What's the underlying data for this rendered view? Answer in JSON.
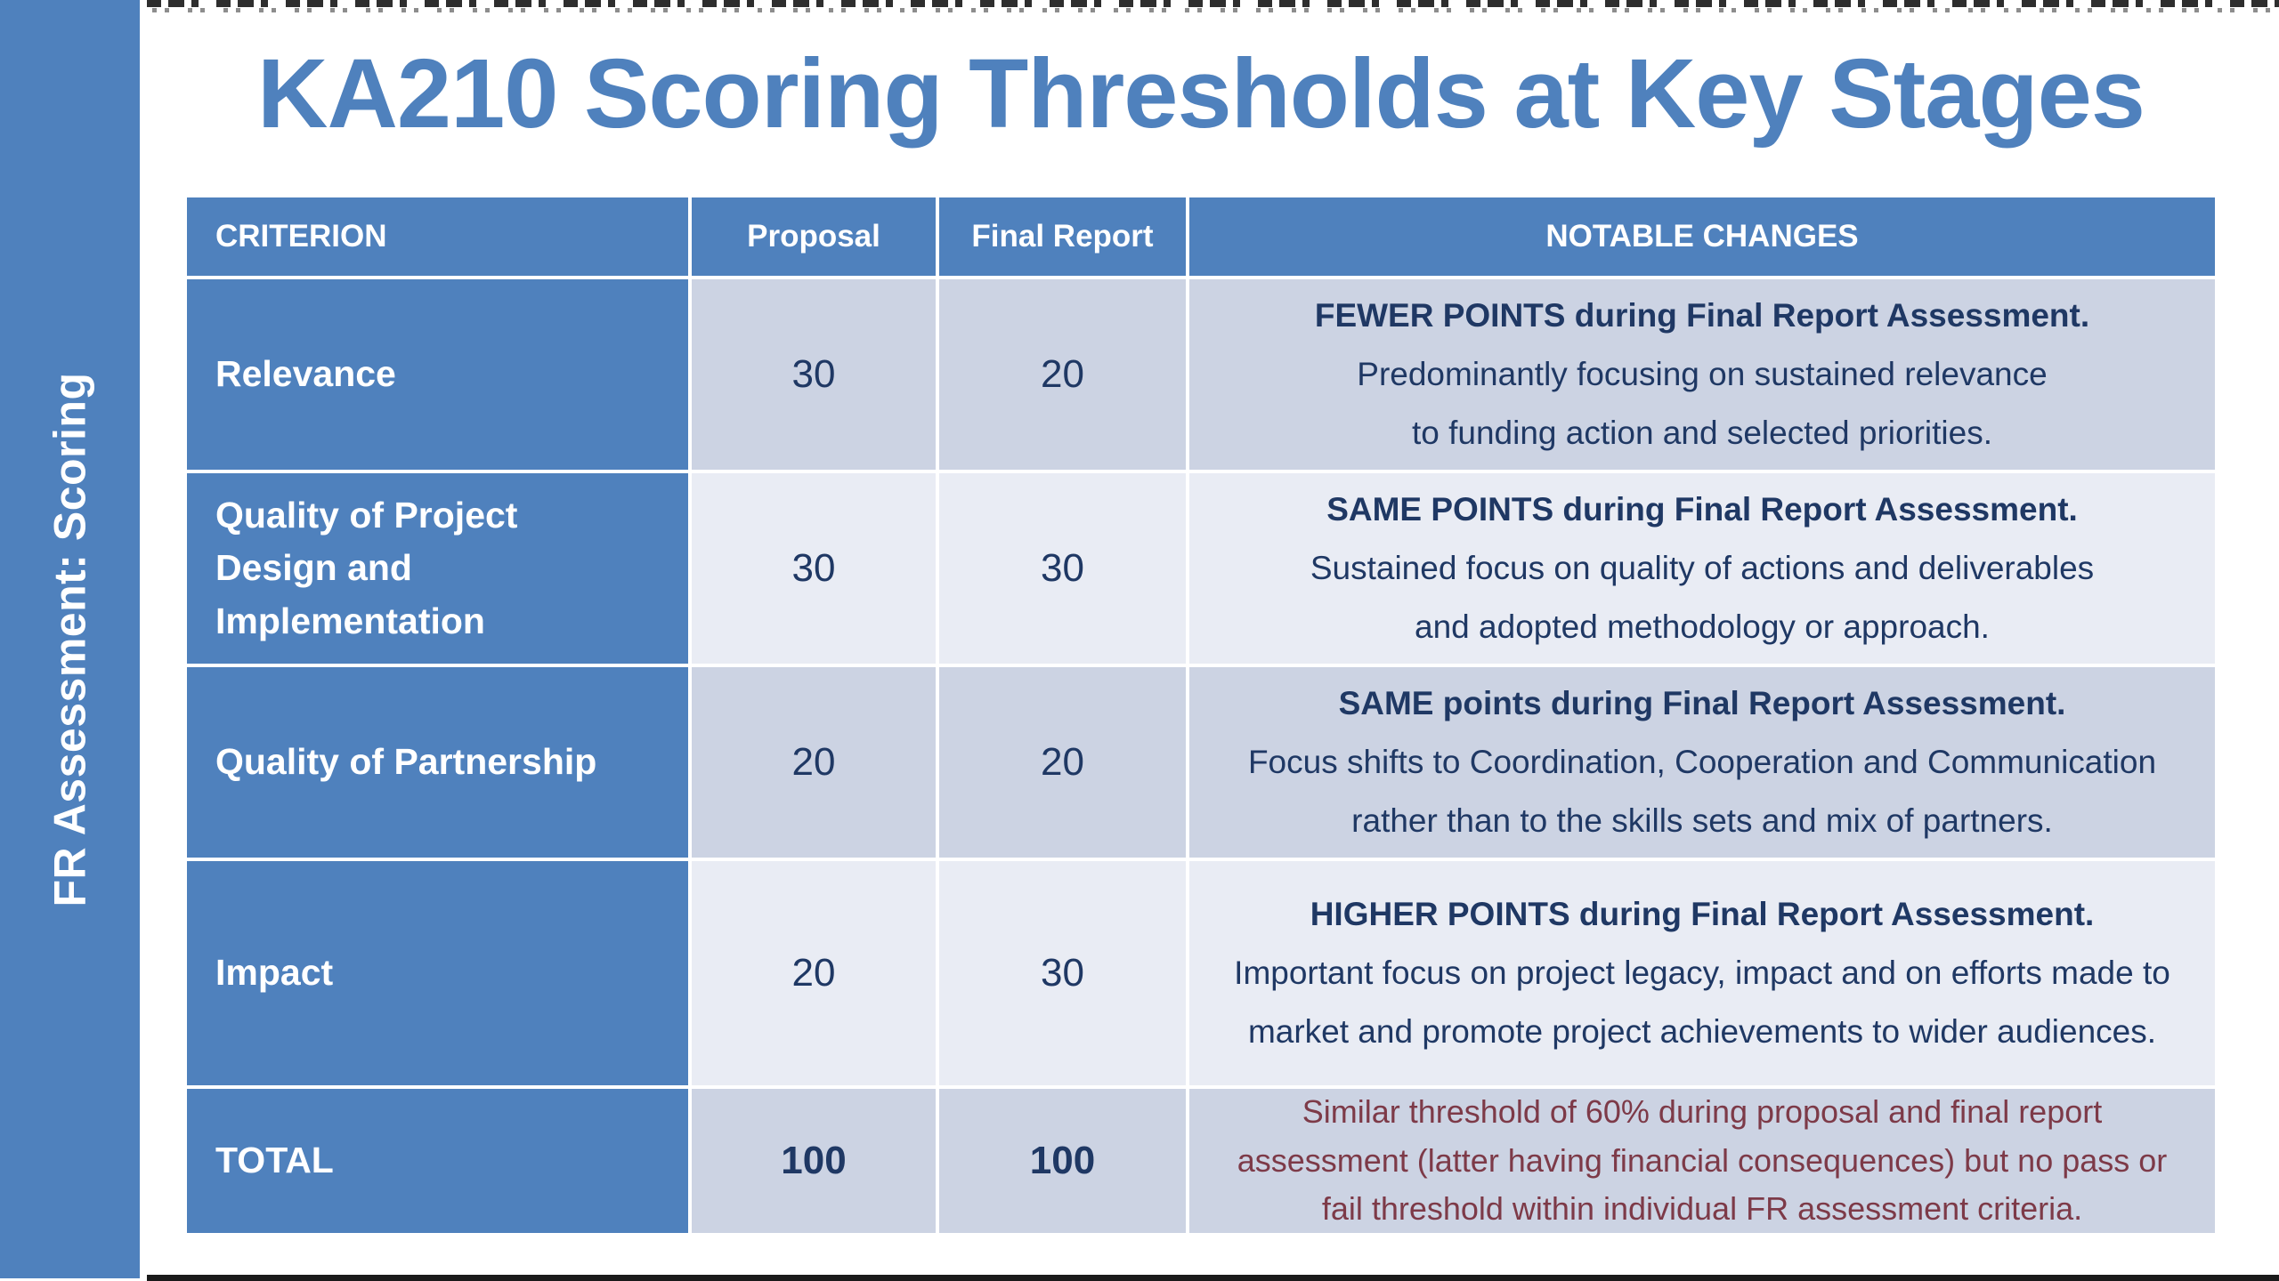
{
  "slide": {
    "title": "KA210 Scoring Thresholds at Key Stages",
    "sidebar_label": "FR Assessment: Scoring"
  },
  "table": {
    "headers": [
      "CRITERION",
      "Proposal",
      "Final Report",
      "NOTABLE CHANGES"
    ],
    "rows": [
      {
        "criterion": "Relevance",
        "proposal": "30",
        "final_report": "20",
        "notes": [
          "FEWER POINTS during Final Report Assessment.",
          "Predominantly focusing on sustained relevance",
          "to funding action and selected priorities."
        ]
      },
      {
        "criterion": "Quality of Project Design and Implementation",
        "proposal": "30",
        "final_report": "30",
        "notes": [
          "SAME POINTS during Final Report Assessment.",
          "Sustained focus on quality of actions and deliverables",
          "and adopted methodology or approach."
        ]
      },
      {
        "criterion": "Quality of Partnership",
        "proposal": "20",
        "final_report": "20",
        "notes": [
          "SAME points during Final Report Assessment.",
          "Focus shifts to Coordination, Cooperation and Communication",
          "rather than to the skills sets and mix of partners."
        ]
      },
      {
        "criterion": "Impact",
        "proposal": "20",
        "final_report": "30",
        "notes": [
          "HIGHER POINTS during Final Report Assessment.",
          "Important focus on project legacy, impact and on efforts made to",
          "market and promote project achievements to wider audiences."
        ]
      },
      {
        "criterion": "TOTAL",
        "proposal": "100",
        "final_report": "100",
        "notes": [
          "Similar threshold of 60% during proposal and final report",
          "assessment (latter having financial consequences) but no pass or",
          "fail threshold within individual FR assessment criteria."
        ]
      }
    ]
  },
  "colors": {
    "accent_blue": "#4f81bd",
    "row_shade_dark": "#ccd3e3",
    "row_shade_light": "#e9ecf4",
    "body_text_navy": "#1f3864",
    "total_note_maroon": "#7d3a48",
    "grid_line_white": "#ffffff"
  }
}
